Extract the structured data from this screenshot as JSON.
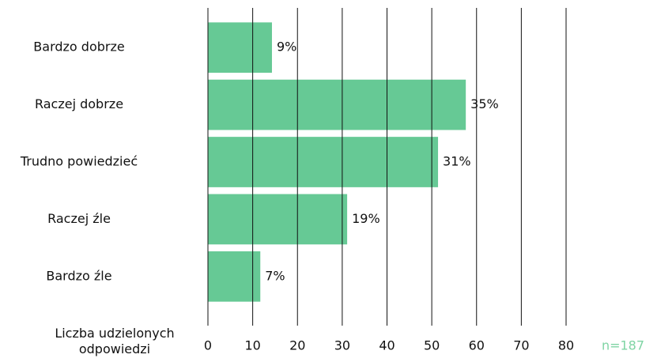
{
  "chart_data": {
    "type": "hbar",
    "categories": [
      "Bardzo dobrze",
      "Raczej dobrze",
      "Trudno powiedzieć",
      "Raczej źle",
      "Bardzo źle"
    ],
    "values": [
      14.3,
      57.6,
      51.4,
      31.1,
      11.7
    ],
    "bar_labels": [
      "9%",
      "35%",
      "31%",
      "19%",
      "7%"
    ],
    "color": "#66c995",
    "xlabel": "Liczba udzielonych odpowiedzi",
    "xlim": [
      0,
      80
    ],
    "xticks": [
      0,
      10,
      20,
      30,
      40,
      50,
      60,
      70,
      80
    ],
    "grid": true,
    "note": "n=187",
    "note_color": "#7fd4a4"
  }
}
